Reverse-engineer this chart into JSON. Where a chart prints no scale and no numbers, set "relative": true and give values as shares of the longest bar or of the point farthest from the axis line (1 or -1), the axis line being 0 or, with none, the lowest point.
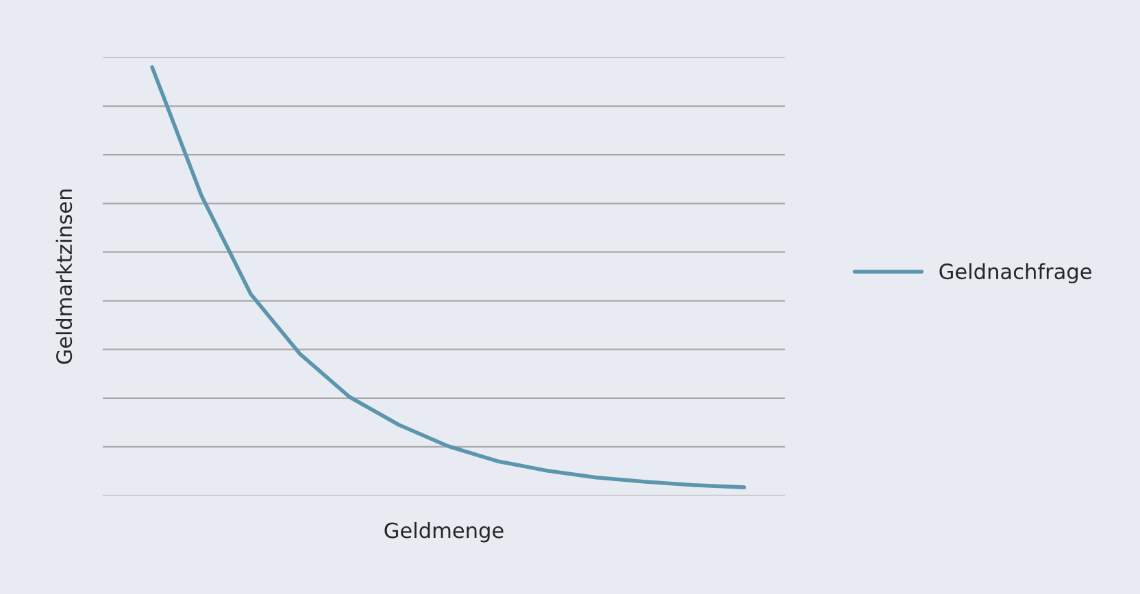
{
  "chart_data": {
    "type": "line",
    "relative": true,
    "xlabel": "Geldmenge",
    "ylabel": "Geldmarktzinsen",
    "categories": [
      null,
      null,
      null,
      null,
      null,
      null,
      null,
      null,
      null,
      null,
      null,
      null,
      null
    ],
    "series": [
      {
        "name": "Geldnachfrage",
        "color": "#5b95ae",
        "values": [
          1.0,
          0.7,
          0.47,
          0.33,
          0.23,
          0.165,
          0.115,
          0.08,
          0.058,
          0.042,
          0.032,
          0.024,
          0.019
        ]
      }
    ],
    "grid": "y",
    "legend": "right",
    "marker": "none",
    "line_style": "solid"
  }
}
